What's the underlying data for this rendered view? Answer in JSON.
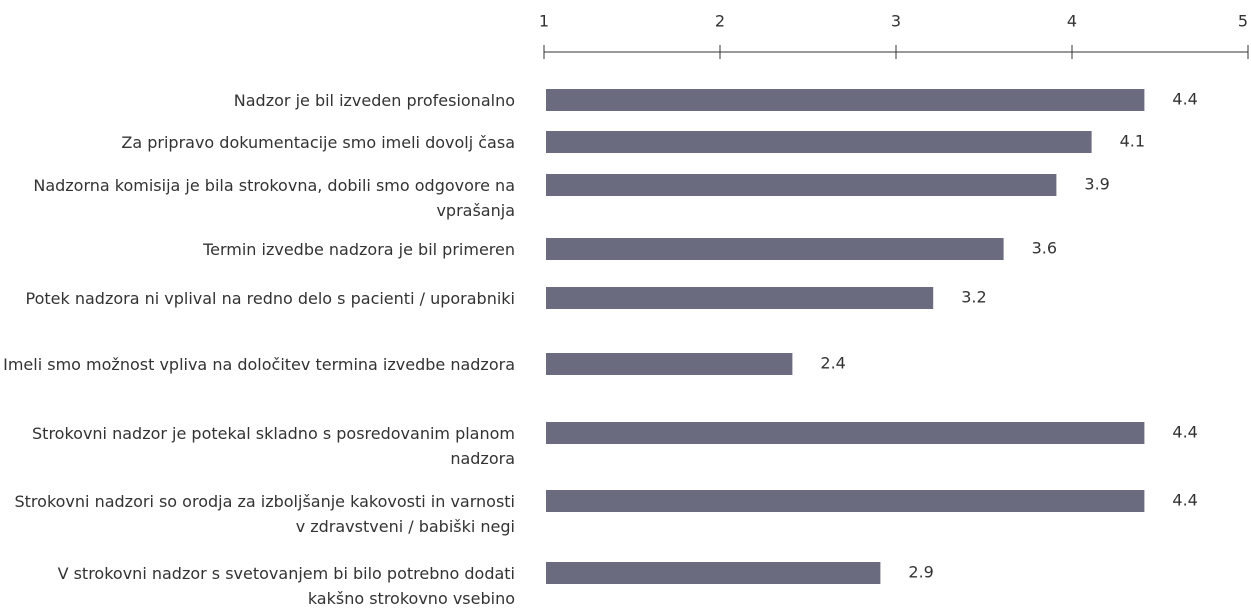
{
  "chart_data": {
    "type": "bar",
    "orientation": "horizontal",
    "categories": [
      "Nadzor je bil izveden profesionalno",
      "Za pripravo dokumentacije smo imeli dovolj časa",
      "Nadzorna komisija je bila strokovna, dobili smo odgovore na vprašanja",
      "Termin izvedbe nadzora je bil primeren",
      "Potek nadzora ni vplival na redno delo  s pacienti / uporabniki",
      "Imeli smo možnost vpliva na določitev termina izvedbe nadzora",
      "Strokovni nadzor je potekal skladno s posredovanim planom nadzora",
      "Strokovni nadzori so orodja za izboljšanje kakovosti in varnosti v zdravstveni / babiški negi",
      "V strokovni nadzor s svetovanjem bi bilo potrebno dodati kakšno strokovno vsebino"
    ],
    "values": [
      4.4,
      4.1,
      3.9,
      3.6,
      3.2,
      2.4,
      4.4,
      4.4,
      2.9
    ],
    "color": "#6b6b80",
    "xlim": [
      1,
      5
    ],
    "xticks": [
      1,
      2,
      3,
      4,
      5
    ]
  }
}
